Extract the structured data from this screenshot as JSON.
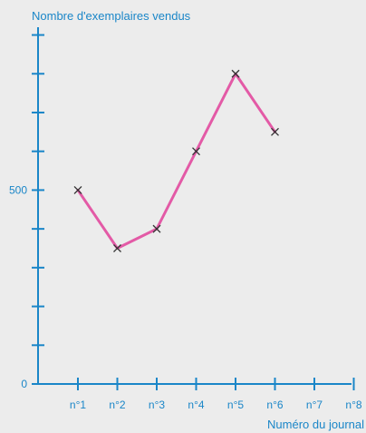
{
  "chart_data": {
    "type": "line",
    "ylabel": "Nombre d'exemplaires vendus",
    "xlabel": "Numéro du journal",
    "categories": [
      "n°1",
      "n°2",
      "n°3",
      "n°4",
      "n°5",
      "n°6",
      "n°7",
      "n°8"
    ],
    "y_tick_labels": [
      {
        "value": 0,
        "label": "0"
      },
      {
        "value": 500,
        "label": "500"
      }
    ],
    "y_tick_values": [
      0,
      100,
      200,
      300,
      400,
      500,
      600,
      700,
      800,
      900
    ],
    "ylim": [
      0,
      920
    ],
    "series": [
      {
        "values": [
          500,
          350,
          400,
          600,
          800,
          650,
          null,
          null
        ]
      }
    ],
    "line_color": "#e35aa6",
    "marker_color": "#333333",
    "axis_color": "#1a86c8",
    "background_color": "#ececec",
    "grid": false,
    "legend": "none"
  }
}
